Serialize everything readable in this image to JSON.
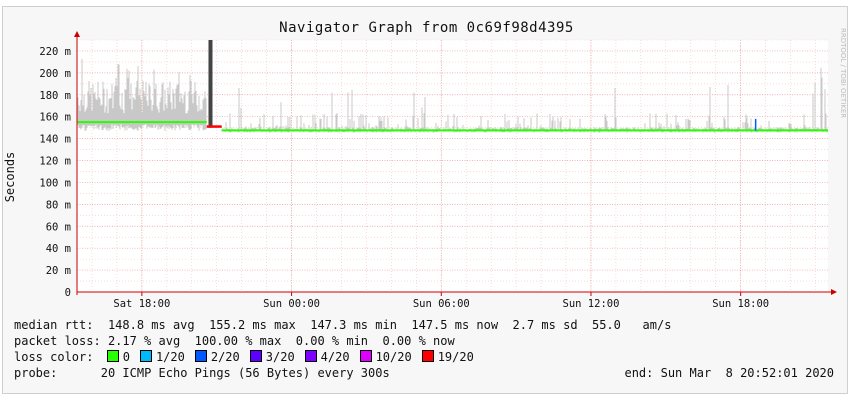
{
  "header": {
    "title": "Navigator Graph from 0c69f98d4395"
  },
  "watermark": "RRDTOOL / TOBI OETIKER",
  "chart_data": {
    "type": "area",
    "ylabel": "Seconds",
    "ylim": [
      0,
      230
    ],
    "yticks": [
      {
        "v": 0,
        "label": "0"
      },
      {
        "v": 20,
        "label": "20 m"
      },
      {
        "v": 40,
        "label": "40 m"
      },
      {
        "v": 60,
        "label": "60 m"
      },
      {
        "v": 80,
        "label": "80 m"
      },
      {
        "v": 100,
        "label": "100 m"
      },
      {
        "v": 120,
        "label": "120 m"
      },
      {
        "v": 140,
        "label": "140 m"
      },
      {
        "v": 160,
        "label": "160 m"
      },
      {
        "v": 180,
        "label": "180 m"
      },
      {
        "v": 200,
        "label": "200 m"
      },
      {
        "v": 220,
        "label": "220 m"
      }
    ],
    "xlim_hours": [
      -8.6,
      21.5
    ],
    "xticks": [
      {
        "h": -6,
        "label": "Sat 18:00"
      },
      {
        "h": 0,
        "label": "Sun 00:00"
      },
      {
        "h": 6,
        "label": "Sun 06:00"
      },
      {
        "h": 12,
        "label": "Sun 12:00"
      },
      {
        "h": 18,
        "label": "Sun 18:00"
      }
    ],
    "series": [
      {
        "role": "median",
        "segments": [
          {
            "from_h": -8.6,
            "to_h": -3.4,
            "value": 155,
            "loss": "0"
          },
          {
            "from_h": -3.4,
            "to_h": -2.8,
            "value": 151,
            "loss": "19/20"
          },
          {
            "from_h": -2.8,
            "to_h": 21.5,
            "value": 147.5,
            "loss": "0"
          }
        ]
      }
    ],
    "outage": {
      "h": -3.25,
      "value": 230
    }
  },
  "stats": {
    "median_rtt_label": "median rtt:",
    "median_rtt_values": "148.8 ms avg  155.2 ms max  147.3 ms min  147.5 ms now  2.7 ms sd  55.0   am/s",
    "packet_loss_label": "packet loss:",
    "packet_loss_values": "2.17 % avg  100.00 % max  0.00 % min  0.00 % now",
    "loss_color_label": "loss color:",
    "loss_colors": [
      {
        "label": "0",
        "color": "#26ff00"
      },
      {
        "label": "1/20",
        "color": "#00b8ff"
      },
      {
        "label": "2/20",
        "color": "#0059ff"
      },
      {
        "label": "3/20",
        "color": "#5e00ff"
      },
      {
        "label": "4/20",
        "color": "#7e00ff"
      },
      {
        "label": "10/20",
        "color": "#dd00ff"
      },
      {
        "label": "19/20",
        "color": "#ff0000"
      }
    ],
    "probe_label": "probe:",
    "probe_value": "20 ICMP Echo Pings (56 Bytes) every 300s",
    "end_value": "end: Sun Mar  8 20:52:01 2020"
  }
}
